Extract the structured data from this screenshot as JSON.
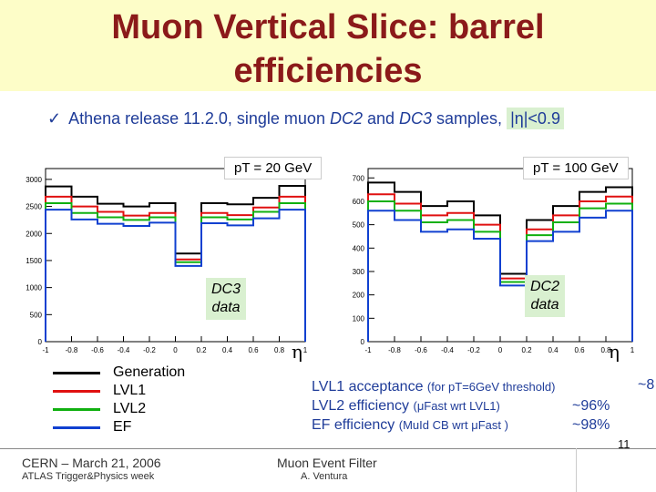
{
  "title_line1": "Muon Vertical Slice: barrel",
  "title_line2": "efficiencies",
  "bullet": {
    "check": "✓",
    "prefix": "Athena release 11.2.0, single muon ",
    "dc2": "DC2",
    "and": " and ",
    "dc3": "DC3",
    "suffix": " samples, ",
    "eta_cut": "|η|<0.9"
  },
  "plot_left": {
    "pt_label": "pT = 20 GeV",
    "data_label_line1": "DC3",
    "data_label_line2": "data",
    "eta_label": "η"
  },
  "plot_right": {
    "pt_label": "pT = 100 GeV",
    "data_label_line1": "DC2",
    "data_label_line2": "data",
    "eta_label": "η"
  },
  "legend": [
    {
      "label": "Generation",
      "color": "#000000"
    },
    {
      "label": "LVL1",
      "color": "#e01010"
    },
    {
      "label": "LVL2",
      "color": "#10b010"
    },
    {
      "label": "EF",
      "color": "#1040d0"
    }
  ],
  "efficiencies": {
    "lvl1_main": "LVL1 acceptance ",
    "lvl1_small": "(for pT=6GeV threshold)",
    "lvl1_value_cut": "~8",
    "lvl2_main": "LVL2 efficiency ",
    "lvl2_small": "(μFast wrt LVL1)",
    "lvl2_value": "~96%",
    "ef_main": "EF efficiency ",
    "ef_small": "(MuId CB wrt μFast )",
    "ef_value": "~98%"
  },
  "footer": {
    "left1": "CERN – March 21, 2006",
    "left2": "ATLAS Trigger&Physics week",
    "mid1": "Muon Event Filter",
    "mid2": "A. Ventura",
    "page": "11"
  },
  "chart_data": [
    {
      "type": "line",
      "title": "pT = 20 GeV",
      "xlabel": "η",
      "ylabel": "",
      "xlim": [
        -1,
        1
      ],
      "ylim": [
        0,
        3200
      ],
      "x_ticks": [
        "-1",
        "-0.8",
        "-0.6",
        "-0.4",
        "-0.2",
        "0",
        "0.2",
        "0.4",
        "0.6",
        "0.8",
        "1"
      ],
      "y_ticks": [
        "0",
        "500",
        "1000",
        "1500",
        "2000",
        "2500",
        "3000"
      ],
      "bin_edges": [
        -1,
        -0.8,
        -0.6,
        -0.4,
        -0.2,
        0,
        0.2,
        0.4,
        0.6,
        0.8,
        1
      ],
      "series": [
        {
          "name": "Generation",
          "color": "#000000",
          "values": [
            2870,
            2680,
            2550,
            2500,
            2560,
            1630,
            2560,
            2540,
            2660,
            2880
          ]
        },
        {
          "name": "LVL1",
          "color": "#e01010",
          "values": [
            2680,
            2500,
            2400,
            2330,
            2380,
            1520,
            2380,
            2340,
            2480,
            2680
          ]
        },
        {
          "name": "LVL2",
          "color": "#10b010",
          "values": [
            2560,
            2380,
            2300,
            2250,
            2300,
            1470,
            2300,
            2260,
            2400,
            2560
          ]
        },
        {
          "name": "EF",
          "color": "#1040d0",
          "values": [
            2440,
            2260,
            2180,
            2140,
            2200,
            1400,
            2190,
            2150,
            2280,
            2440
          ]
        }
      ]
    },
    {
      "type": "line",
      "title": "pT = 100 GeV",
      "xlabel": "η",
      "ylabel": "",
      "xlim": [
        -1,
        1
      ],
      "ylim": [
        0,
        740
      ],
      "x_ticks": [
        "-1",
        "-0.8",
        "-0.6",
        "-0.4",
        "-0.2",
        "0",
        "0.2",
        "0.4",
        "0.6",
        "0.8",
        "1"
      ],
      "y_ticks": [
        "0",
        "100",
        "200",
        "300",
        "400",
        "500",
        "600",
        "700"
      ],
      "bin_edges": [
        -1,
        -0.8,
        -0.6,
        -0.4,
        -0.2,
        0,
        0.2,
        0.4,
        0.6,
        0.8,
        1
      ],
      "series": [
        {
          "name": "Generation",
          "color": "#000000",
          "values": [
            680,
            640,
            580,
            600,
            540,
            290,
            520,
            580,
            640,
            660
          ]
        },
        {
          "name": "LVL1",
          "color": "#e01010",
          "values": [
            630,
            590,
            540,
            550,
            500,
            270,
            480,
            540,
            600,
            620
          ]
        },
        {
          "name": "LVL2",
          "color": "#10b010",
          "values": [
            600,
            560,
            510,
            520,
            470,
            255,
            455,
            510,
            570,
            590
          ]
        },
        {
          "name": "EF",
          "color": "#1040d0",
          "values": [
            560,
            520,
            470,
            480,
            440,
            240,
            430,
            470,
            530,
            560
          ]
        }
      ]
    }
  ]
}
